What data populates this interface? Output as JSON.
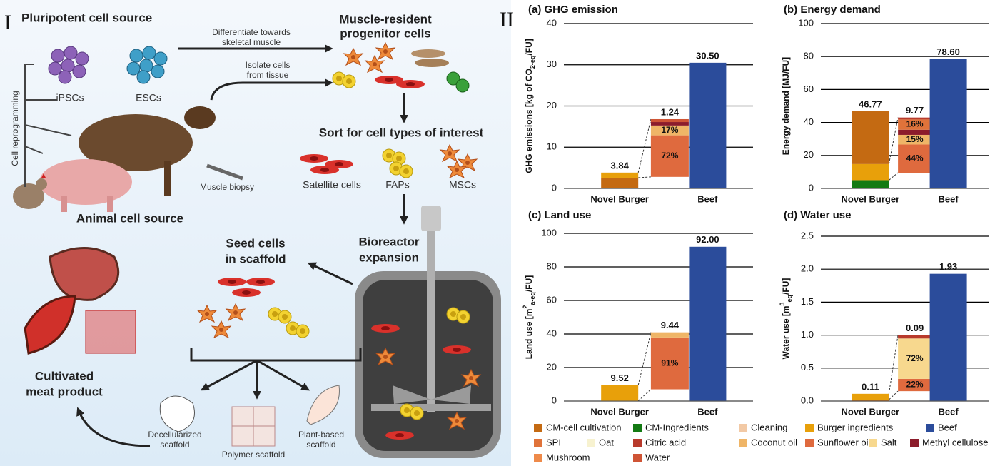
{
  "diagram": {
    "panel_label": "I",
    "pluripotent_title": "Pluripotent cell source",
    "ipsc": "iPSCs",
    "esc": "ESCs",
    "differentiate": [
      "Differentiate towards",
      "skeletal muscle"
    ],
    "progenitor_title": [
      "Muscle-resident",
      "progenitor cells"
    ],
    "isolate": [
      "Isolate cells",
      "from tissue"
    ],
    "reprogramming": "Cell reprogramming",
    "biopsy": "Muscle biopsy",
    "animal_title": "Animal cell source",
    "sort_title": "Sort for cell types of interest",
    "satellite": "Satellite cells",
    "faps": "FAPs",
    "mscs": "MSCs",
    "bioreactor_title": [
      "Bioreactor",
      "expansion"
    ],
    "seed_title": [
      "Seed cells",
      "in scaffold"
    ],
    "product_title": [
      "Cultivated",
      "meat product"
    ],
    "decell": [
      "Decellularized",
      "scaffold"
    ],
    "polymer": "Polymer scaffold",
    "plant": [
      "Plant-based",
      "scaffold"
    ]
  },
  "chart_panel_label": "II",
  "chart_data": [
    {
      "type": "bar",
      "title": "(a) GHG emission",
      "ylabel": [
        {
          "text": "GHG emissions [kg of CO"
        },
        {
          "text": "2-eq",
          "shift": "sub"
        },
        {
          "text": "/FU]"
        }
      ],
      "categories": [
        "Novel Burger",
        "Beef"
      ],
      "ylim": [
        0,
        40
      ],
      "yticks": [
        0,
        10,
        20,
        30,
        40
      ],
      "grid": true,
      "totals": [
        3.84,
        30.5
      ],
      "total_labels": [
        "3.84",
        "30.50"
      ],
      "series": [
        {
          "name": "CM-cell cultivation",
          "color": "#c46a12",
          "values": [
            2.6,
            null
          ]
        },
        {
          "name": "Burger ingredients",
          "color": "#e8a00a",
          "values": [
            1.24,
            null
          ],
          "breakdown": {
            "label": "1.24",
            "segments": [
              {
                "name": "Sunflower oil",
                "color": "#df6a3e",
                "value": 72,
                "label": "72%"
              },
              {
                "name": "Coconut oil",
                "color": "#efb567",
                "value": 17,
                "label": "17%"
              },
              {
                "name": "Methyl cellulose",
                "color": "#8c1c2b",
                "value": 6
              },
              {
                "name": "Water",
                "color": "#cf5435",
                "value": 5
              }
            ]
          }
        },
        {
          "name": "Beef",
          "color": "#2b4c9b",
          "values": [
            null,
            30.5
          ]
        }
      ]
    },
    {
      "type": "bar",
      "title": "(b) Energy demand",
      "ylabel": [
        {
          "text": "Energy demand [MJ/FU]"
        }
      ],
      "categories": [
        "Novel Burger",
        "Beef"
      ],
      "ylim": [
        0,
        100
      ],
      "yticks": [
        0,
        20,
        40,
        60,
        80,
        100
      ],
      "grid": true,
      "totals": [
        46.77,
        78.6
      ],
      "total_labels": [
        "46.77",
        "78.60"
      ],
      "series": [
        {
          "name": "CM-Ingredients",
          "color": "#137a13",
          "values": [
            5,
            null
          ]
        },
        {
          "name": "Burger ingredients",
          "color": "#e8a00a",
          "values": [
            9.77,
            null
          ],
          "breakdown": {
            "label": "9.77",
            "segments": [
              {
                "name": "Sunflower oil",
                "color": "#df6a3e",
                "value": 44,
                "label": "44%"
              },
              {
                "name": "Coconut oil",
                "color": "#efb567",
                "value": 15,
                "label": "15%"
              },
              {
                "name": "Methyl cellulose",
                "color": "#8c1c2b",
                "value": 8
              },
              {
                "name": "SPI",
                "color": "#e0733a",
                "value": 16,
                "label": "16%"
              },
              {
                "name": "Citric acid",
                "color": "#b83a2c",
                "value": 3
              }
            ]
          }
        },
        {
          "name": "CM-cell cultivation",
          "color": "#c46a12",
          "values": [
            32,
            null
          ]
        },
        {
          "name": "Beef",
          "color": "#2b4c9b",
          "values": [
            null,
            78.6
          ]
        }
      ]
    },
    {
      "type": "bar",
      "title": "(c) Land use",
      "ylabel": [
        {
          "text": "Land use [m"
        },
        {
          "text": "2",
          "shift": "super"
        },
        {
          "text": "a-eq",
          "shift": "sub"
        },
        {
          "text": "/FU]"
        }
      ],
      "categories": [
        "Novel Burger",
        "Beef"
      ],
      "ylim": [
        0,
        100
      ],
      "yticks": [
        0,
        20,
        40,
        60,
        80,
        100
      ],
      "grid": true,
      "totals": [
        9.52,
        92
      ],
      "total_labels": [
        "9.52",
        "92.00"
      ],
      "series": [
        {
          "name": "CM-cell cultivation",
          "color": "#c46a12",
          "values": [
            0.08,
            null
          ]
        },
        {
          "name": "Burger ingredients",
          "color": "#e8a00a",
          "values": [
            9.44,
            null
          ],
          "breakdown": {
            "label": "9.44",
            "segments": [
              {
                "name": "Sunflower oil",
                "color": "#df6a3e",
                "value": 91,
                "label": "91%"
              },
              {
                "name": "Coconut oil",
                "color": "#efb567",
                "value": 9
              }
            ]
          }
        },
        {
          "name": "Beef",
          "color": "#2b4c9b",
          "values": [
            null,
            92
          ]
        }
      ]
    },
    {
      "type": "bar",
      "title": "(d) Water use",
      "ylabel": [
        {
          "text": "Water use [m"
        },
        {
          "text": "3",
          "shift": "super"
        },
        {
          "text": "eq",
          "shift": "sub"
        },
        {
          "text": "/FU]"
        }
      ],
      "categories": [
        "Novel Burger",
        "Beef"
      ],
      "ylim": [
        0,
        2.5
      ],
      "yticks": [
        {
          "value": 0,
          "label": "0.0"
        },
        0.5,
        {
          "value": 1,
          "label": "1.0"
        },
        1.5,
        {
          "value": 2,
          "label": "2.0"
        },
        2.5
      ],
      "grid": true,
      "totals": [
        0.11,
        1.93
      ],
      "total_labels": [
        "0.11",
        "1.93"
      ],
      "series": [
        {
          "name": "CM-cell cultivation",
          "color": "#c46a12",
          "values": [
            0.02,
            null
          ]
        },
        {
          "name": "Burger ingredients",
          "color": "#e8a00a",
          "values": [
            0.09,
            null
          ],
          "breakdown": {
            "label": "0.09",
            "segments": [
              {
                "name": "Sunflower oil",
                "color": "#df6a3e",
                "value": 22,
                "label": "22%"
              },
              {
                "name": "Salt",
                "color": "#f7d88e",
                "value": 72,
                "label": "72%"
              },
              {
                "name": "Citric acid",
                "color": "#b83a2c",
                "value": 6
              }
            ]
          }
        },
        {
          "name": "Beef",
          "color": "#2b4c9b",
          "values": [
            null,
            1.93
          ]
        }
      ]
    }
  ],
  "legend": [
    {
      "name": "CM-cell cultivation",
      "color": "#c46a12"
    },
    {
      "name": "CM-Ingredients",
      "color": "#137a13"
    },
    {
      "name": "Cleaning",
      "color": "#f2c9a5"
    },
    {
      "name": "Burger ingredients",
      "color": "#e8a00a"
    },
    {
      "name": "Beef",
      "color": "#2b4c9b"
    },
    {
      "name": "SPI",
      "color": "#e0733a"
    },
    {
      "name": "Oat",
      "color": "#f7f2d0"
    },
    {
      "name": "Citric acid",
      "color": "#b83a2c"
    },
    {
      "name": "Coconut oil",
      "color": "#efb567"
    },
    {
      "name": "Sunflower oil",
      "color": "#df6a3e"
    },
    {
      "name": "Salt",
      "color": "#f7d88e"
    },
    {
      "name": "Methyl cellulose",
      "color": "#8c1c2b"
    },
    {
      "name": "Mushroom",
      "color": "#ee8a4a"
    },
    {
      "name": "Water",
      "color": "#cf5435"
    }
  ]
}
